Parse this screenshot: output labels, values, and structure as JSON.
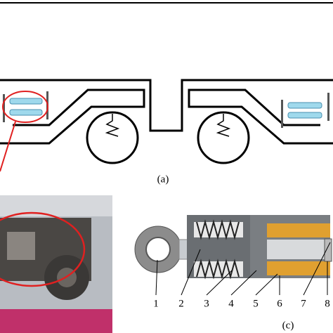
{
  "figure": {
    "panel_a_label": "(a)",
    "panel_c_label": "(c)",
    "part_numbers": [
      "1",
      "2",
      "3",
      "4",
      "5",
      "6",
      "7",
      "8"
    ]
  }
}
